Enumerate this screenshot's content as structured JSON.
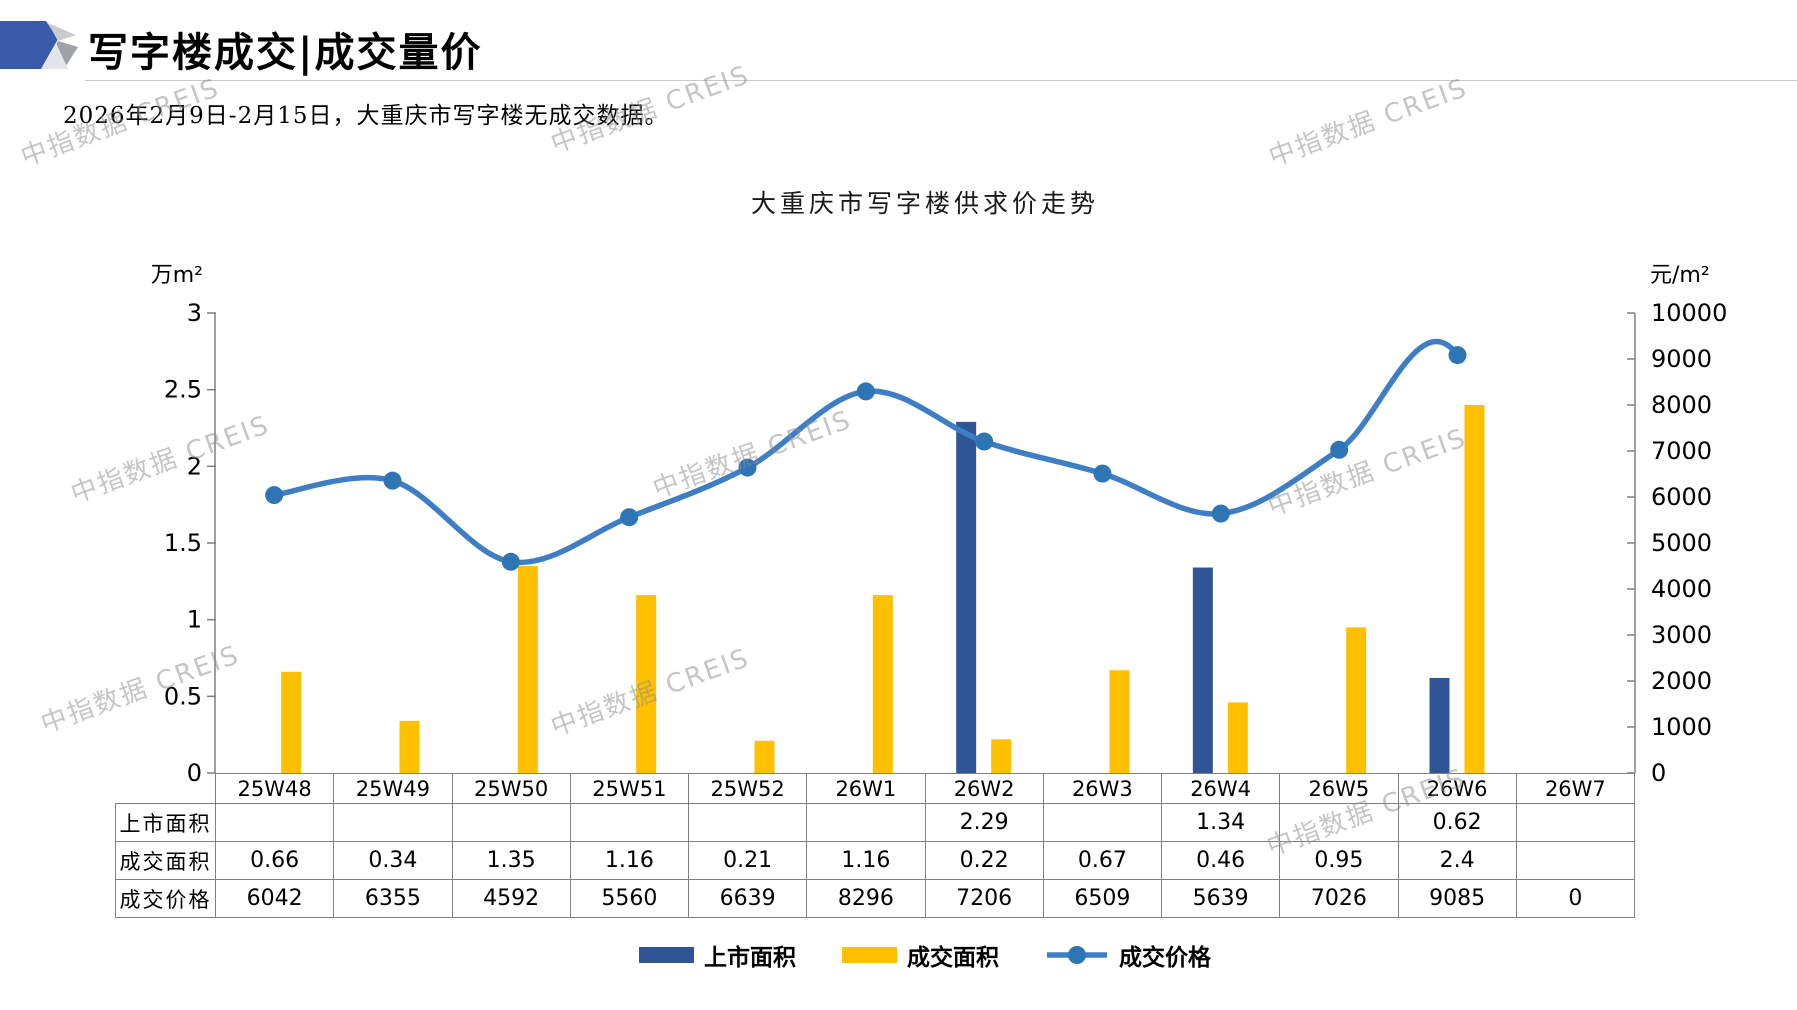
{
  "page": {
    "title": "写字楼成交|成交量价",
    "subtitle": "2026年2月9日-2月15日，大重庆市写字楼无成交数据。",
    "watermark": "中指数据 CREIS"
  },
  "chart_data": {
    "type": "bar+line",
    "title": "大重庆市写字楼供求价走势",
    "categories": [
      "25W48",
      "25W49",
      "25W50",
      "25W51",
      "25W52",
      "26W1",
      "26W2",
      "26W3",
      "26W4",
      "26W5",
      "26W6",
      "26W7"
    ],
    "series": [
      {
        "name": "上市面积",
        "type": "bar",
        "axis": "left",
        "color": "#2F5597",
        "values": [
          null,
          null,
          null,
          null,
          null,
          null,
          2.29,
          null,
          1.34,
          null,
          0.62,
          null
        ]
      },
      {
        "name": "成交面积",
        "type": "bar",
        "axis": "left",
        "color": "#FFC000",
        "values": [
          0.66,
          0.34,
          1.35,
          1.16,
          0.21,
          1.16,
          0.22,
          0.67,
          0.46,
          0.95,
          2.4,
          null
        ]
      },
      {
        "name": "成交价格",
        "type": "line",
        "axis": "right",
        "color": "#3E7EC4",
        "marker_color": "#2E75B6",
        "values": [
          6042,
          6355,
          4592,
          5560,
          6639,
          8296,
          7206,
          6509,
          5639,
          7026,
          9085,
          null
        ]
      }
    ],
    "left_axis": {
      "unit": "万m²",
      "min": 0,
      "max": 3,
      "ticks": [
        3,
        2.5,
        2,
        1.5,
        1,
        0.5,
        0
      ]
    },
    "right_axis": {
      "unit": "元/m²",
      "min": 0,
      "max": 10000,
      "ticks": [
        10000,
        9000,
        8000,
        7000,
        6000,
        5000,
        4000,
        3000,
        2000,
        1000,
        0
      ]
    },
    "grid": false,
    "legend_position": "bottom"
  },
  "table": {
    "rows": [
      {
        "label": "上市面积",
        "values": [
          "",
          "",
          "",
          "",
          "",
          "",
          "2.29",
          "",
          "1.34",
          "",
          "0.62",
          ""
        ]
      },
      {
        "label": "成交面积",
        "values": [
          "0.66",
          "0.34",
          "1.35",
          "1.16",
          "0.21",
          "1.16",
          "0.22",
          "0.67",
          "0.46",
          "0.95",
          "2.4",
          ""
        ]
      },
      {
        "label": "成交价格",
        "values": [
          "6042",
          "6355",
          "4592",
          "5560",
          "6639",
          "8296",
          "7206",
          "6509",
          "5639",
          "7026",
          "9085",
          "0"
        ]
      }
    ]
  }
}
